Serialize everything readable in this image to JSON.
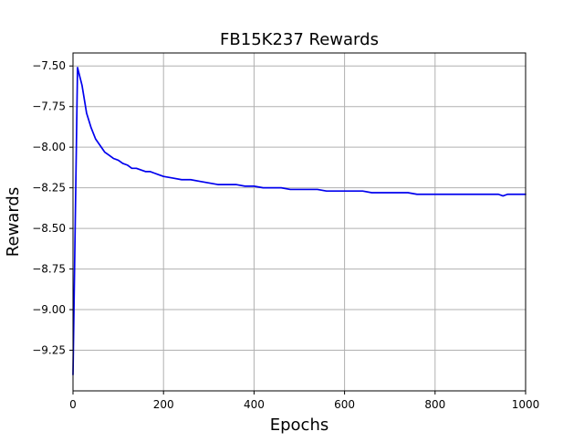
{
  "chart_data": {
    "type": "line",
    "title": "FB15K237 Rewards",
    "xlabel": "Epochs",
    "ylabel": "Rewards",
    "xlim": [
      0,
      1000
    ],
    "ylim": [
      -9.5,
      -7.42
    ],
    "grid": true,
    "x_ticks": [
      0,
      200,
      400,
      600,
      800,
      1000
    ],
    "x_tick_labels": [
      "0",
      "200",
      "400",
      "600",
      "800",
      "1000"
    ],
    "y_ticks": [
      -7.5,
      -7.75,
      -8.0,
      -8.25,
      -8.5,
      -8.75,
      -9.0,
      -9.25
    ],
    "y_tick_labels": [
      "−7.50",
      "−7.75",
      "−8.00",
      "−8.25",
      "−8.50",
      "−8.75",
      "−9.00",
      "−9.25"
    ],
    "series": [
      {
        "color": "#0000ee",
        "x": [
          0,
          10,
          20,
          30,
          40,
          50,
          60,
          70,
          80,
          90,
          100,
          110,
          120,
          130,
          140,
          150,
          160,
          170,
          180,
          190,
          200,
          220,
          240,
          260,
          280,
          300,
          320,
          340,
          360,
          380,
          400,
          420,
          440,
          460,
          480,
          500,
          520,
          540,
          560,
          580,
          600,
          620,
          640,
          660,
          680,
          700,
          720,
          740,
          760,
          780,
          800,
          820,
          840,
          860,
          880,
          900,
          920,
          940,
          950,
          960,
          980,
          1000
        ],
        "y": [
          -9.4,
          -7.51,
          -7.62,
          -7.79,
          -7.88,
          -7.95,
          -7.99,
          -8.03,
          -8.05,
          -8.07,
          -8.08,
          -8.1,
          -8.11,
          -8.13,
          -8.13,
          -8.14,
          -8.15,
          -8.15,
          -8.16,
          -8.17,
          -8.18,
          -8.19,
          -8.2,
          -8.2,
          -8.21,
          -8.22,
          -8.23,
          -8.23,
          -8.23,
          -8.24,
          -8.24,
          -8.25,
          -8.25,
          -8.25,
          -8.26,
          -8.26,
          -8.26,
          -8.26,
          -8.27,
          -8.27,
          -8.27,
          -8.27,
          -8.27,
          -8.28,
          -8.28,
          -8.28,
          -8.28,
          -8.28,
          -8.29,
          -8.29,
          -8.29,
          -8.29,
          -8.29,
          -8.29,
          -8.29,
          -8.29,
          -8.29,
          -8.29,
          -8.3,
          -8.29,
          -8.29,
          -8.29
        ]
      }
    ]
  }
}
